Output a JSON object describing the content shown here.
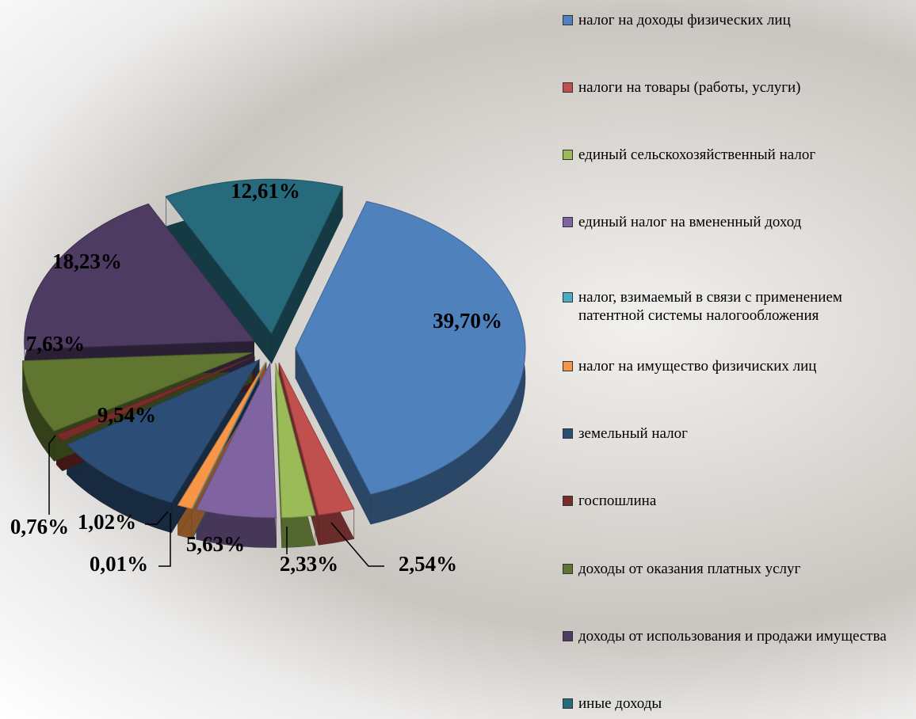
{
  "chart_data": {
    "type": "pie3d",
    "categories": [
      "налог на доходы физических лиц",
      "налоги на товары (работы, услуги)",
      "единый сельскохозяйственный налог",
      "единый налог на вмененный доход",
      "налог, взимаемый в связи с применением патентной системы налогообложения",
      "налог на имущество физичиских лиц",
      "земельный налог",
      "госпошлина",
      "доходы от оказания платных услуг",
      "доходы от  использования и продажи имущества",
      "иные доходы"
    ],
    "values": [
      39.7,
      2.54,
      2.33,
      5.63,
      0.01,
      1.02,
      9.54,
      0.76,
      7.63,
      18.23,
      12.61
    ],
    "value_labels": [
      "39,70%",
      "2,54%",
      "2,33%",
      "5,63%",
      "0,01%",
      "1,02%",
      "9,54%",
      "0,76%",
      "7,63%",
      "18,23%",
      "12,61%"
    ],
    "colors": [
      "#4f81bd",
      "#c0504d",
      "#9bbb59",
      "#8064a2",
      "#4bacc6",
      "#f79646",
      "#2c4d75",
      "#772c2a",
      "#5f7530",
      "#4d3b62",
      "#276a7c"
    ],
    "legend": "right"
  }
}
